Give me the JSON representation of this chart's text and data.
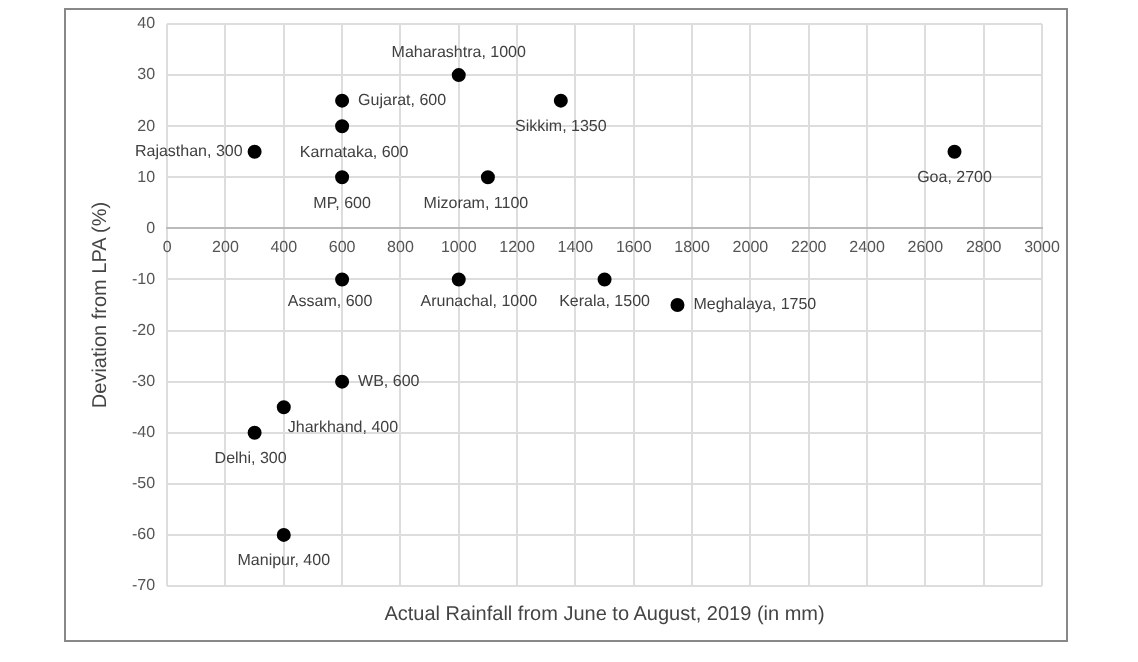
{
  "chart_data": {
    "type": "scatter",
    "xlabel": "Actual Rainfall from June to August, 2019 (in mm)",
    "ylabel": "Deviation from LPA (%)",
    "series": [
      {
        "color": "#000000",
        "x": [
          1000,
          600,
          1350,
          600,
          300,
          600,
          1100,
          2700,
          600,
          1000,
          1500,
          1750,
          600,
          400,
          300,
          400
        ],
        "values": [
          30,
          25,
          25,
          20,
          15,
          10,
          10,
          15,
          -10,
          -10,
          -10,
          -15,
          -30,
          -35,
          -40,
          -60
        ]
      }
    ],
    "xlim": [
      0,
      3000
    ],
    "xticks": [
      0,
      200,
      400,
      600,
      800,
      1000,
      1200,
      1400,
      1600,
      1800,
      2000,
      2200,
      2400,
      2600,
      2800,
      3000
    ],
    "ylim": [
      -70,
      40
    ],
    "yticks": [
      -70,
      -60,
      -50,
      -40,
      -30,
      -20,
      -10,
      0,
      10,
      20,
      30,
      40
    ],
    "grid": true,
    "marker": "circle",
    "legend": false,
    "annotations": [
      {
        "text": "Maharashtra, 1000",
        "x": 1000,
        "y": 30
      },
      {
        "text": "Gujarat, 600",
        "x": 600,
        "y": 25
      },
      {
        "text": "Sikkim, 1350",
        "x": 1350,
        "y": 25
      },
      {
        "text": "Karnataka, 600",
        "x": 600,
        "y": 20
      },
      {
        "text": "Rajasthan, 300",
        "x": 300,
        "y": 15
      },
      {
        "text": "MP, 600",
        "x": 600,
        "y": 10
      },
      {
        "text": "Mizoram, 1100",
        "x": 1100,
        "y": 10
      },
      {
        "text": "Goa, 2700",
        "x": 2700,
        "y": 15
      },
      {
        "text": "Assam, 600",
        "x": 600,
        "y": -10
      },
      {
        "text": "Arunachal, 1000",
        "x": 1000,
        "y": -10
      },
      {
        "text": "Kerala, 1500",
        "x": 1500,
        "y": -10
      },
      {
        "text": "Meghalaya, 1750",
        "x": 1750,
        "y": -15
      },
      {
        "text": "WB, 600",
        "x": 600,
        "y": -30
      },
      {
        "text": "Jharkhand, 400",
        "x": 400,
        "y": -35
      },
      {
        "text": "Delhi, 300",
        "x": 300,
        "y": -40
      },
      {
        "text": "Manipur, 400",
        "x": 400,
        "y": -60
      }
    ]
  }
}
